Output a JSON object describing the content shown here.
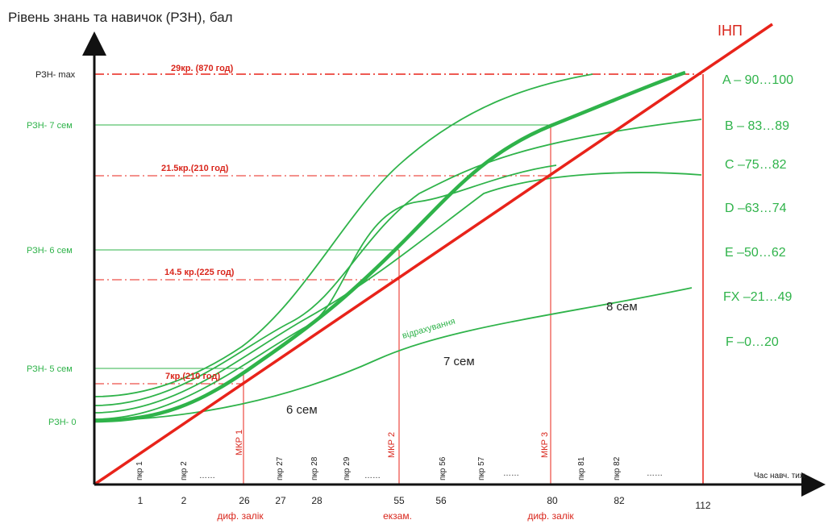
{
  "title": "Рівень знань та навичок (РЗН), бал",
  "x_axis_label": "Час навч. тиж",
  "inp_label": "ІНП",
  "y_levels": [
    {
      "label": "РЗН- max",
      "kind": "max"
    },
    {
      "label": "РЗН- 7 сем",
      "kind": "sem7"
    },
    {
      "label": "РЗН- 6 сем",
      "kind": "sem6"
    },
    {
      "label": "РЗН- 5 сем",
      "kind": "sem5"
    },
    {
      "label": "РЗН- 0",
      "kind": "zero"
    }
  ],
  "credit_labels": [
    "29кр. (870 год)",
    "21.5кр.(210 год)",
    "14.5 кр.(225 год)",
    "7кр.(210 год)"
  ],
  "grades": [
    "A – 90…100",
    "B – 83…89",
    "C –75…82",
    "D –63…74",
    "E –50…62",
    "FX –21…49",
    "F –0…20"
  ],
  "x_ticks": [
    "1",
    "2",
    "26",
    "27",
    "28",
    "55",
    "56",
    "80",
    "82",
    "112"
  ],
  "x_subs": [
    "диф. залік",
    "екзам.",
    "диф. залік"
  ],
  "rotated_labels": {
    "pkr": [
      "пкр 1",
      "пкр 2",
      "пкр 27",
      "пкр 28",
      "пкр 29",
      "пкр 56",
      "пкр 57",
      "пкр 81",
      "пкр 82"
    ],
    "mkr": [
      "МКР 1",
      "МКР 2",
      "МКР 3"
    ],
    "dots": [
      "……",
      "……",
      "……",
      "……"
    ]
  },
  "semester_labels": [
    "6 сем",
    "7 сем",
    "8 сем"
  ],
  "dropout_label": "відрахування",
  "colors": {
    "green": "#2fb34a",
    "red": "#e8231a",
    "black": "#111111"
  }
}
